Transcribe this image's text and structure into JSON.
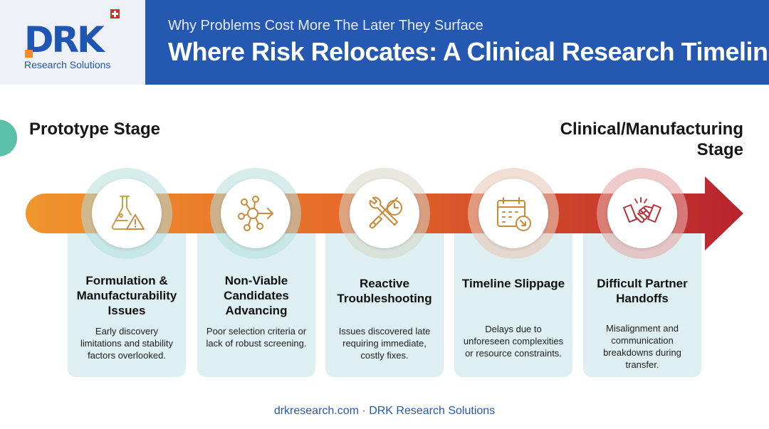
{
  "logo": {
    "text": "DRK",
    "subtext": "Research Solutions"
  },
  "header": {
    "subtitle": "Why Problems Cost More The Later They Surface",
    "title": "Where Risk Relocates: A Clinical Research Timeline"
  },
  "stages": {
    "start": "Prototype Stage",
    "end": "Clinical/Manufacturing Stage"
  },
  "colors": {
    "brand_blue": "#2559b1",
    "arrow_start": "#f0952e",
    "arrow_end": "#b8232e",
    "card_bg": "#deeff1",
    "logo_orange": "#f28c28"
  },
  "cards": [
    {
      "icon": "flask-warning-icon",
      "title": "Formulation & Manufacturability Issues",
      "description": "Early discovery limitations and stability factors overlooked."
    },
    {
      "icon": "network-arrow-icon",
      "title": "Non-Viable Candidates Advancing",
      "description": "Poor selection criteria or lack of robust screening."
    },
    {
      "icon": "tools-clock-icon",
      "title": "Reactive Troubleshooting",
      "description": "Issues discovered late requiring immediate, costly fixes."
    },
    {
      "icon": "calendar-delay-icon",
      "title": "Timeline Slippage",
      "description": "Delays due to unforeseen complexities or resource constraints."
    },
    {
      "icon": "handshake-icon",
      "title": "Difficult Partner Handoffs",
      "description": "Misalignment and communication breakdowns during transfer."
    }
  ],
  "footer": "drkresearch.com · DRK Research Solutions"
}
